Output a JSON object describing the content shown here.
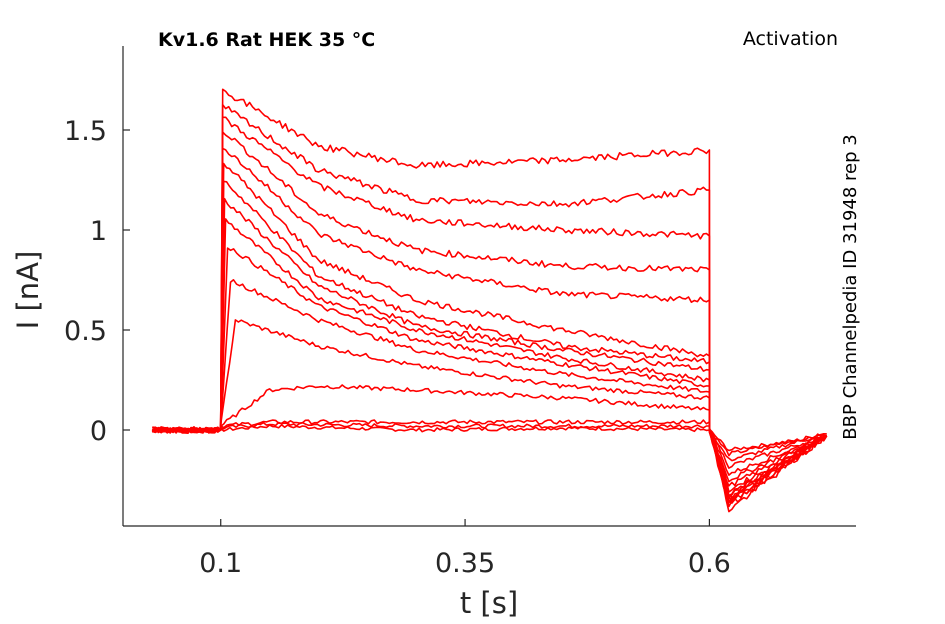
{
  "chart_data": {
    "type": "line",
    "title": "Kv1.6  Rat  HEK  35 °C",
    "annotation": "Activation",
    "side_label": "BBP Channelpedia ID 31948 rep 3",
    "xlabel": "t [s]",
    "ylabel": "I [nA]",
    "xlim": [
      0.0,
      0.75
    ],
    "ylim": [
      -0.48,
      1.92
    ],
    "xticks": [
      0.1,
      0.35,
      0.6
    ],
    "xtick_labels": [
      "0.1",
      "0.35",
      "0.6"
    ],
    "yticks": [
      0,
      0.5,
      1,
      1.5
    ],
    "ytick_labels": [
      "0",
      "0.5",
      "1",
      "1.5"
    ],
    "grid": false,
    "line_color": "#ff0000",
    "series": [
      {
        "x": [
          0.03,
          0.1,
          0.1,
          0.15,
          0.3,
          0.45,
          0.6,
          0.6,
          0.62,
          0.72
        ],
        "y": [
          0.0,
          0.0,
          0.0,
          0.02,
          0.0,
          0.01,
          0.0,
          0.0,
          -0.1,
          -0.03
        ]
      },
      {
        "x": [
          0.03,
          0.1,
          0.1,
          0.15,
          0.3,
          0.45,
          0.6,
          0.6,
          0.62,
          0.72
        ],
        "y": [
          0.0,
          0.0,
          0.01,
          0.03,
          0.02,
          0.02,
          0.02,
          0.0,
          -0.12,
          -0.02
        ]
      },
      {
        "x": [
          0.03,
          0.1,
          0.1,
          0.15,
          0.3,
          0.45,
          0.6,
          0.6,
          0.62,
          0.72
        ],
        "y": [
          0.0,
          0.0,
          0.02,
          0.04,
          0.04,
          0.04,
          0.04,
          0.0,
          -0.15,
          -0.02
        ]
      },
      {
        "x": [
          0.03,
          0.1,
          0.1,
          0.15,
          0.2,
          0.3,
          0.45,
          0.6,
          0.6,
          0.62,
          0.72
        ],
        "y": [
          0.0,
          0.0,
          0.02,
          0.2,
          0.22,
          0.2,
          0.16,
          0.1,
          0.0,
          -0.18,
          -0.03
        ]
      },
      {
        "x": [
          0.03,
          0.1,
          0.1,
          0.115,
          0.2,
          0.3,
          0.45,
          0.6,
          0.6,
          0.62,
          0.72
        ],
        "y": [
          0.0,
          0.0,
          0.02,
          0.55,
          0.42,
          0.32,
          0.22,
          0.16,
          0.0,
          -0.22,
          -0.03
        ]
      },
      {
        "x": [
          0.03,
          0.1,
          0.1,
          0.11,
          0.2,
          0.3,
          0.45,
          0.6,
          0.6,
          0.62,
          0.72
        ],
        "y": [
          0.0,
          0.0,
          0.02,
          0.75,
          0.55,
          0.4,
          0.28,
          0.19,
          0.0,
          -0.25,
          -0.03
        ]
      },
      {
        "x": [
          0.03,
          0.1,
          0.1,
          0.107,
          0.2,
          0.3,
          0.45,
          0.6,
          0.6,
          0.62,
          0.72
        ],
        "y": [
          0.0,
          0.0,
          0.02,
          0.92,
          0.62,
          0.45,
          0.33,
          0.22,
          0.0,
          -0.28,
          -0.03
        ]
      },
      {
        "x": [
          0.03,
          0.1,
          0.1,
          0.105,
          0.2,
          0.3,
          0.45,
          0.6,
          0.6,
          0.62,
          0.72
        ],
        "y": [
          0.0,
          0.0,
          0.02,
          1.05,
          0.66,
          0.5,
          0.36,
          0.25,
          0.0,
          -0.3,
          -0.03
        ]
      },
      {
        "x": [
          0.03,
          0.1,
          0.1,
          0.104,
          0.2,
          0.3,
          0.45,
          0.6,
          0.6,
          0.62,
          0.72
        ],
        "y": [
          0.0,
          0.0,
          0.02,
          1.15,
          0.72,
          0.52,
          0.4,
          0.3,
          0.0,
          -0.32,
          -0.03
        ]
      },
      {
        "x": [
          0.03,
          0.1,
          0.1,
          0.103,
          0.2,
          0.3,
          0.45,
          0.6,
          0.6,
          0.62,
          0.72
        ],
        "y": [
          0.0,
          0.0,
          0.02,
          1.25,
          0.77,
          0.57,
          0.42,
          0.34,
          0.0,
          -0.33,
          -0.03
        ]
      },
      {
        "x": [
          0.03,
          0.1,
          0.1,
          0.103,
          0.2,
          0.3,
          0.45,
          0.6,
          0.6,
          0.62,
          0.72
        ],
        "y": [
          0.0,
          0.0,
          0.02,
          1.34,
          0.85,
          0.65,
          0.5,
          0.37,
          0.0,
          -0.34,
          -0.03
        ]
      },
      {
        "x": [
          0.03,
          0.1,
          0.1,
          0.102,
          0.2,
          0.3,
          0.45,
          0.6,
          0.6,
          0.62,
          0.72
        ],
        "y": [
          0.0,
          0.0,
          0.02,
          1.42,
          0.98,
          0.8,
          0.68,
          0.65,
          0.0,
          -0.35,
          -0.03
        ]
      },
      {
        "x": [
          0.03,
          0.1,
          0.1,
          0.102,
          0.2,
          0.3,
          0.45,
          0.6,
          0.6,
          0.62,
          0.72
        ],
        "y": [
          0.0,
          0.0,
          0.02,
          1.5,
          1.08,
          0.9,
          0.82,
          0.8,
          0.0,
          -0.36,
          -0.03
        ]
      },
      {
        "x": [
          0.03,
          0.1,
          0.1,
          0.102,
          0.2,
          0.3,
          0.45,
          0.6,
          0.6,
          0.62,
          0.72
        ],
        "y": [
          0.0,
          0.0,
          0.02,
          1.56,
          1.22,
          1.05,
          1.0,
          0.97,
          0.0,
          -0.37,
          -0.03
        ]
      },
      {
        "x": [
          0.03,
          0.1,
          0.1,
          0.102,
          0.2,
          0.3,
          0.45,
          0.6,
          0.6,
          0.62,
          0.72
        ],
        "y": [
          0.0,
          0.0,
          0.02,
          1.62,
          1.3,
          1.15,
          1.13,
          1.2,
          0.0,
          -0.38,
          -0.03
        ]
      },
      {
        "x": [
          0.03,
          0.1,
          0.1,
          0.102,
          0.2,
          0.3,
          0.45,
          0.6,
          0.6,
          0.62,
          0.72
        ],
        "y": [
          0.0,
          0.0,
          0.02,
          1.7,
          1.42,
          1.32,
          1.35,
          1.4,
          0.0,
          -0.4,
          -0.03
        ]
      }
    ]
  }
}
